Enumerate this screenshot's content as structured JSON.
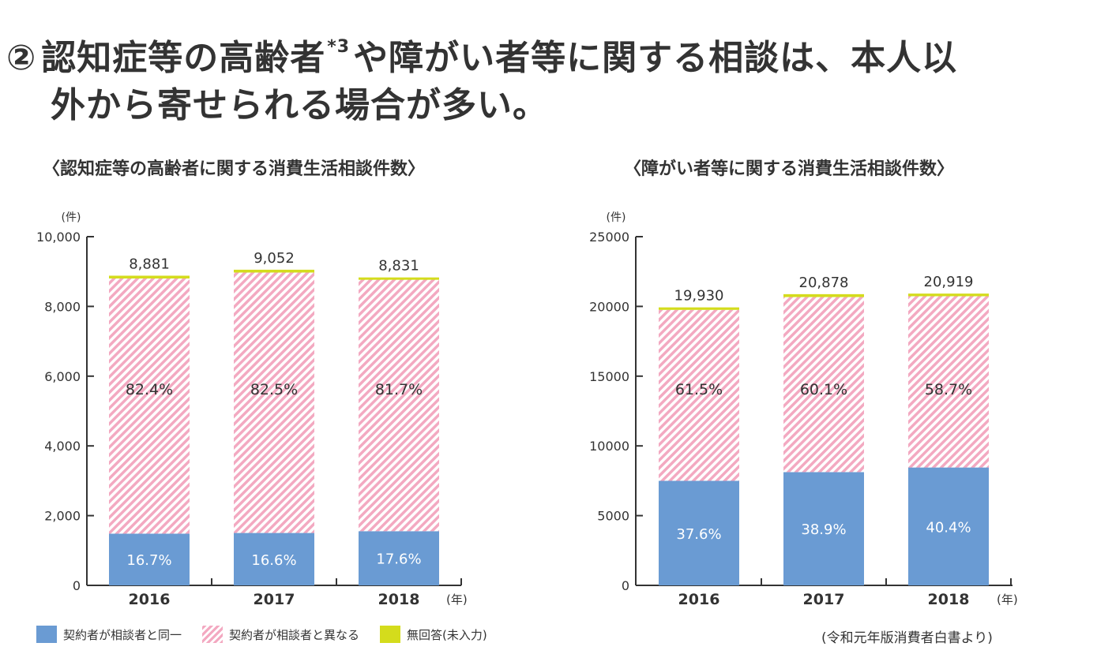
{
  "heading": {
    "circled_number": "②",
    "line1_a": "認知症等の高齢者",
    "superscript": "*3",
    "line1_b": "や障がい者等に関する相談は、本人以",
    "line2": "外から寄せられる場合が多い。"
  },
  "legend": {
    "same": "契約者が相談者と同一",
    "different": "契約者が相談者と異なる",
    "no_answer": "無回答(未入力)"
  },
  "source": "(令和元年版消費者白書より)",
  "colors": {
    "same": "#6a9bd3",
    "different": "#f3a9c1",
    "no_answer": "#d4dc1c",
    "axis": "#333333"
  },
  "chart_data": [
    {
      "type": "bar",
      "stacked": true,
      "title": "〈認知症等の高齢者に関する消費生活相談件数〉",
      "y_unit": "(件)",
      "x_unit": "(年)",
      "categories": [
        "2016",
        "2017",
        "2018"
      ],
      "ylim": [
        0,
        10000
      ],
      "yticks": [
        "0",
        "2,000",
        "4,000",
        "6,000",
        "8,000",
        "10,000"
      ],
      "ytick_values": [
        0,
        2000,
        4000,
        6000,
        8000,
        10000
      ],
      "totals": [
        8881,
        9052,
        8831
      ],
      "total_labels": [
        "8,881",
        "9,052",
        "8,831"
      ],
      "series": [
        {
          "name": "契約者が相談者と同一",
          "values": [
            1483,
            1503,
            1554
          ],
          "pct_labels": [
            "16.7%",
            "16.6%",
            "17.6%"
          ]
        },
        {
          "name": "契約者が相談者と異なる",
          "values": [
            7318,
            7468,
            7215
          ],
          "pct_labels": [
            "82.4%",
            "82.5%",
            "81.7%"
          ]
        },
        {
          "name": "無回答(未入力)",
          "values": [
            80,
            81,
            62
          ]
        }
      ]
    },
    {
      "type": "bar",
      "stacked": true,
      "title": "〈障がい者等に関する消費生活相談件数〉",
      "y_unit": "(件)",
      "x_unit": "(年)",
      "categories": [
        "2016",
        "2017",
        "2018"
      ],
      "ylim": [
        0,
        25000
      ],
      "yticks": [
        "0",
        "5000",
        "10000",
        "15000",
        "20000",
        "25000"
      ],
      "ytick_values": [
        0,
        5000,
        10000,
        15000,
        20000,
        25000
      ],
      "totals": [
        19930,
        20878,
        20919
      ],
      "total_labels": [
        "19,930",
        "20,878",
        "20,919"
      ],
      "series": [
        {
          "name": "契約者が相談者と同一",
          "values": [
            7494,
            8122,
            8451
          ],
          "pct_labels": [
            "37.6%",
            "38.9%",
            "40.4%"
          ]
        },
        {
          "name": "契約者が相談者と異なる",
          "values": [
            12257,
            12548,
            12279
          ],
          "pct_labels": [
            "61.5%",
            "60.1%",
            "58.7%"
          ]
        },
        {
          "name": "無回答(未入力)",
          "values": [
            179,
            208,
            189
          ]
        }
      ]
    }
  ]
}
